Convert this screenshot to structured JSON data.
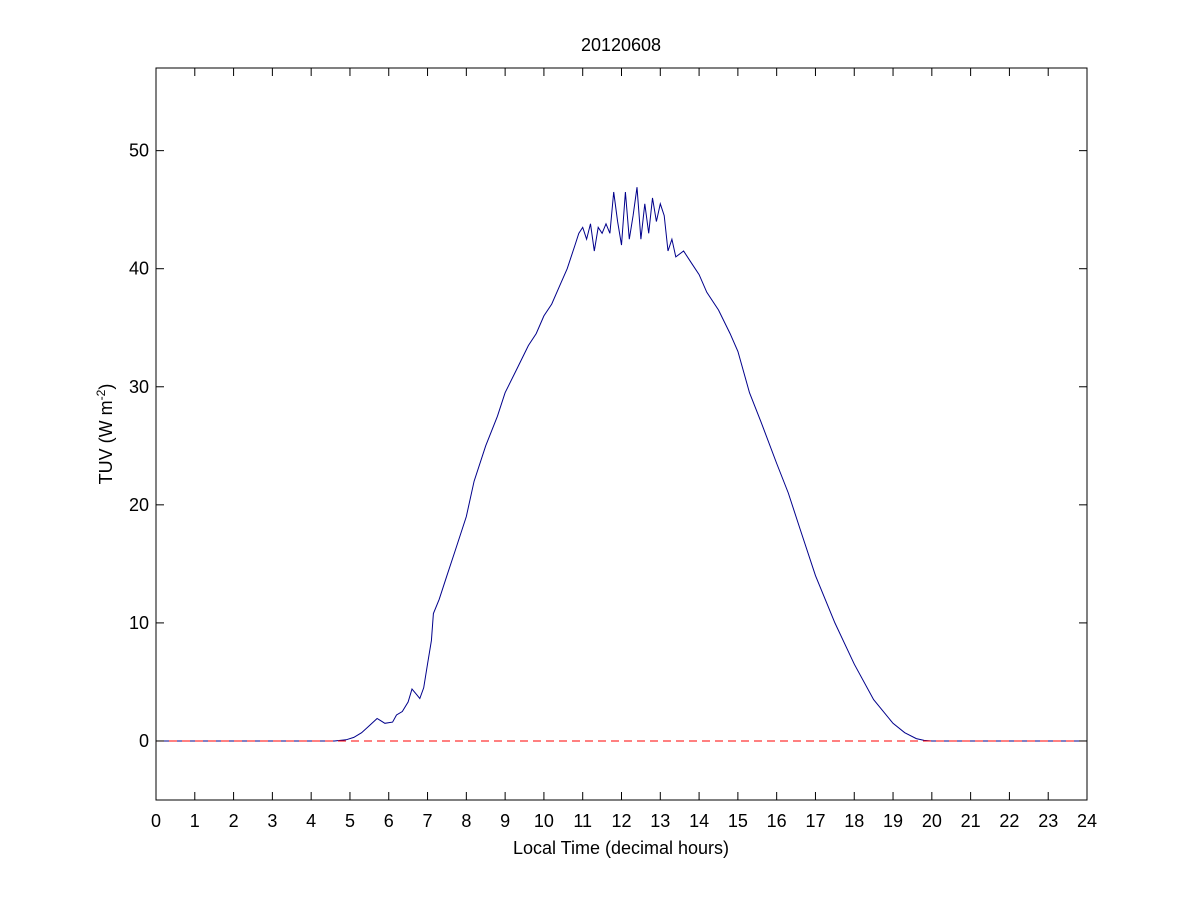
{
  "chart_data": {
    "type": "line",
    "title": "20120608",
    "xlabel": "Local Time (decimal hours)",
    "ylabel": {
      "text": "TUV (W m",
      "superscript": "-2",
      "suffix": ")"
    },
    "xlim": [
      0,
      24
    ],
    "ylim": [
      -5,
      57
    ],
    "xticks": [
      0,
      1,
      2,
      3,
      4,
      5,
      6,
      7,
      8,
      9,
      10,
      11,
      12,
      13,
      14,
      15,
      16,
      17,
      18,
      19,
      20,
      21,
      22,
      23,
      24
    ],
    "yticks": [
      0,
      10,
      20,
      30,
      40,
      50
    ],
    "grid": false,
    "series": [
      {
        "color": "#00008b",
        "style": "solid",
        "x": [
          0,
          4.6,
          4.9,
          5.1,
          5.3,
          5.5,
          5.7,
          5.75,
          5.9,
          6.1,
          6.2,
          6.35,
          6.5,
          6.6,
          6.7,
          6.8,
          6.9,
          7.0,
          7.1,
          7.15,
          7.3,
          7.5,
          7.7,
          8.0,
          8.2,
          8.5,
          8.8,
          9.0,
          9.3,
          9.6,
          9.8,
          10.0,
          10.2,
          10.4,
          10.6,
          10.8,
          10.9,
          11.0,
          11.1,
          11.2,
          11.3,
          11.4,
          11.5,
          11.6,
          11.7,
          11.8,
          11.9,
          12.0,
          12.1,
          12.2,
          12.3,
          12.4,
          12.5,
          12.6,
          12.7,
          12.8,
          12.9,
          13.0,
          13.1,
          13.2,
          13.3,
          13.4,
          13.6,
          13.8,
          14.0,
          14.2,
          14.5,
          14.8,
          15.0,
          15.3,
          15.6,
          16.0,
          16.3,
          16.6,
          17.0,
          17.5,
          18.0,
          18.5,
          19.0,
          19.3,
          19.6,
          19.8,
          20.0,
          24
        ],
        "y": [
          0,
          0,
          0.1,
          0.3,
          0.7,
          1.3,
          1.9,
          1.8,
          1.5,
          1.6,
          2.2,
          2.5,
          3.3,
          4.4,
          4.0,
          3.6,
          4.5,
          6.5,
          8.5,
          10.8,
          12.0,
          14.0,
          16.0,
          19.0,
          22.0,
          25.0,
          27.5,
          29.5,
          31.5,
          33.5,
          34.5,
          36.0,
          37.0,
          38.5,
          40.0,
          42.0,
          43.0,
          43.5,
          42.5,
          43.8,
          41.5,
          43.5,
          43.0,
          43.8,
          43.0,
          46.5,
          44.0,
          42.0,
          46.5,
          42.5,
          44.5,
          46.9,
          42.5,
          45.5,
          43.0,
          46.0,
          44.0,
          45.5,
          44.5,
          41.5,
          42.5,
          41.0,
          41.5,
          40.5,
          39.5,
          38.0,
          36.5,
          34.5,
          33.0,
          29.5,
          27.0,
          23.5,
          21.0,
          18.0,
          14.0,
          10.0,
          6.5,
          3.5,
          1.5,
          0.7,
          0.2,
          0.05,
          0,
          0
        ]
      },
      {
        "color": "#ff0000",
        "style": "dashed",
        "x": [
          0,
          24
        ],
        "y": [
          0,
          0
        ]
      }
    ]
  }
}
